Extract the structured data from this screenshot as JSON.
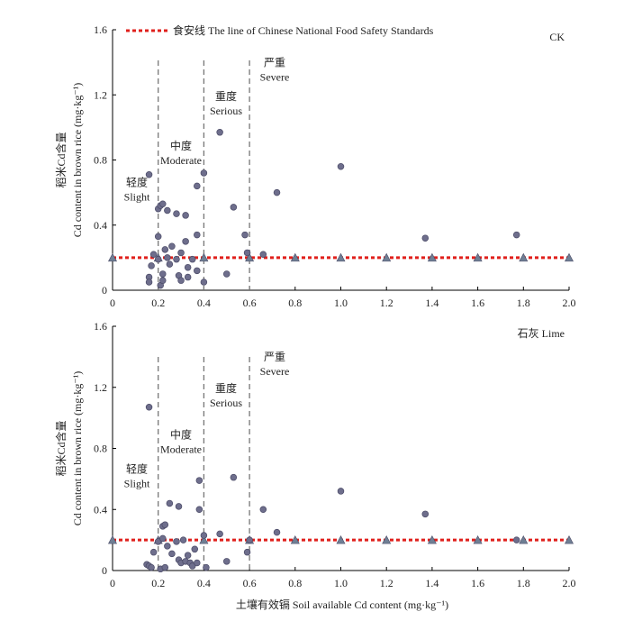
{
  "colors": {
    "point": "#6e6e8c",
    "point_edge": "#4a4a66",
    "standard_line": "#e0201c",
    "triangle": "#6f7f94",
    "divider": "#777777",
    "axis": "#000000"
  },
  "legend": {
    "standard_label": "食安线 The line of Chinese National Food Safety Standards"
  },
  "x_axis_label": "土壤有效镉 Soil available Cd content (mg·kg⁻¹)",
  "chart_data": [
    {
      "type": "scatter",
      "panel_label": "CK",
      "ylabel_cn": "稻米Cd含量",
      "ylabel_en": "Cd content in brown rice (mg·kg⁻¹)",
      "xlim": [
        0,
        2.0
      ],
      "ylim": [
        0,
        1.6
      ],
      "x_ticks": [
        "0",
        "0.2",
        "0.4",
        "0.6",
        "0.8",
        "1.0",
        "1.2",
        "1.4",
        "1.6",
        "1.8",
        "2.0"
      ],
      "y_ticks": [
        "0",
        "0.4",
        "0.8",
        "1.2",
        "1.6"
      ],
      "standard_line_y": 0.2,
      "triangle_markers_x": [
        0,
        0.2,
        0.4,
        0.6,
        0.8,
        1.0,
        1.2,
        1.4,
        1.6,
        1.8,
        2.0
      ],
      "dividers_x": [
        0.2,
        0.4,
        0.6
      ],
      "zones": [
        {
          "cn": "轻度",
          "en": "Slight"
        },
        {
          "cn": "中度",
          "en": "Moderate"
        },
        {
          "cn": "重度",
          "en": "Serious"
        },
        {
          "cn": "严重",
          "en": "Severe"
        }
      ],
      "points": [
        {
          "x": 0.16,
          "y": 0.71
        },
        {
          "x": 0.16,
          "y": 0.08
        },
        {
          "x": 0.16,
          "y": 0.05
        },
        {
          "x": 0.17,
          "y": 0.15
        },
        {
          "x": 0.18,
          "y": 0.22
        },
        {
          "x": 0.2,
          "y": 0.5
        },
        {
          "x": 0.2,
          "y": 0.33
        },
        {
          "x": 0.2,
          "y": 0.19
        },
        {
          "x": 0.21,
          "y": 0.52
        },
        {
          "x": 0.21,
          "y": 0.03
        },
        {
          "x": 0.22,
          "y": 0.53
        },
        {
          "x": 0.22,
          "y": 0.1
        },
        {
          "x": 0.22,
          "y": 0.06
        },
        {
          "x": 0.23,
          "y": 0.25
        },
        {
          "x": 0.24,
          "y": 0.49
        },
        {
          "x": 0.24,
          "y": 0.2
        },
        {
          "x": 0.25,
          "y": 0.16
        },
        {
          "x": 0.26,
          "y": 0.27
        },
        {
          "x": 0.28,
          "y": 0.47
        },
        {
          "x": 0.28,
          "y": 0.19
        },
        {
          "x": 0.29,
          "y": 0.09
        },
        {
          "x": 0.3,
          "y": 0.23
        },
        {
          "x": 0.3,
          "y": 0.06
        },
        {
          "x": 0.32,
          "y": 0.46
        },
        {
          "x": 0.32,
          "y": 0.3
        },
        {
          "x": 0.33,
          "y": 0.14
        },
        {
          "x": 0.33,
          "y": 0.08
        },
        {
          "x": 0.35,
          "y": 0.19
        },
        {
          "x": 0.37,
          "y": 0.64
        },
        {
          "x": 0.37,
          "y": 0.34
        },
        {
          "x": 0.37,
          "y": 0.12
        },
        {
          "x": 0.4,
          "y": 0.72
        },
        {
          "x": 0.4,
          "y": 0.05
        },
        {
          "x": 0.47,
          "y": 0.97
        },
        {
          "x": 0.5,
          "y": 0.1
        },
        {
          "x": 0.53,
          "y": 0.51
        },
        {
          "x": 0.58,
          "y": 0.34
        },
        {
          "x": 0.59,
          "y": 0.23
        },
        {
          "x": 0.66,
          "y": 0.22
        },
        {
          "x": 0.72,
          "y": 0.6
        },
        {
          "x": 1.0,
          "y": 0.76
        },
        {
          "x": 1.37,
          "y": 0.32
        },
        {
          "x": 1.77,
          "y": 0.34
        }
      ]
    },
    {
      "type": "scatter",
      "panel_label": "石灰 Lime",
      "ylabel_cn": "稻米Cd含量",
      "ylabel_en": "Cd content in brown rice (mg·kg⁻¹)",
      "xlim": [
        0,
        2.0
      ],
      "ylim": [
        0,
        1.6
      ],
      "x_ticks": [
        "0",
        "0.2",
        "0.4",
        "0.6",
        "0.8",
        "1.0",
        "1.2",
        "1.4",
        "1.6",
        "1.8",
        "2.0"
      ],
      "y_ticks": [
        "0",
        "0.4",
        "0.8",
        "1.2",
        "1.6"
      ],
      "standard_line_y": 0.2,
      "triangle_markers_x": [
        0,
        0.2,
        0.4,
        0.6,
        0.8,
        1.0,
        1.2,
        1.4,
        1.6,
        1.8,
        2.0
      ],
      "dividers_x": [
        0.2,
        0.4,
        0.6
      ],
      "zones": [
        {
          "cn": "轻度",
          "en": "Slight"
        },
        {
          "cn": "中度",
          "en": "Moderate"
        },
        {
          "cn": "重度",
          "en": "Serious"
        },
        {
          "cn": "严重",
          "en": "Severe"
        }
      ],
      "points": [
        {
          "x": 0.16,
          "y": 1.07
        },
        {
          "x": 0.15,
          "y": 0.04
        },
        {
          "x": 0.16,
          "y": 0.03
        },
        {
          "x": 0.17,
          "y": 0.02
        },
        {
          "x": 0.18,
          "y": 0.12
        },
        {
          "x": 0.2,
          "y": 0.19
        },
        {
          "x": 0.21,
          "y": 0.01
        },
        {
          "x": 0.22,
          "y": 0.29
        },
        {
          "x": 0.22,
          "y": 0.21
        },
        {
          "x": 0.23,
          "y": 0.3
        },
        {
          "x": 0.23,
          "y": 0.02
        },
        {
          "x": 0.24,
          "y": 0.16
        },
        {
          "x": 0.25,
          "y": 0.44
        },
        {
          "x": 0.26,
          "y": 0.11
        },
        {
          "x": 0.28,
          "y": 0.19
        },
        {
          "x": 0.29,
          "y": 0.42
        },
        {
          "x": 0.29,
          "y": 0.07
        },
        {
          "x": 0.3,
          "y": 0.05
        },
        {
          "x": 0.31,
          "y": 0.2
        },
        {
          "x": 0.32,
          "y": 0.06
        },
        {
          "x": 0.33,
          "y": 0.1
        },
        {
          "x": 0.34,
          "y": 0.05
        },
        {
          "x": 0.35,
          "y": 0.03
        },
        {
          "x": 0.36,
          "y": 0.14
        },
        {
          "x": 0.37,
          "y": 0.05
        },
        {
          "x": 0.38,
          "y": 0.59
        },
        {
          "x": 0.38,
          "y": 0.4
        },
        {
          "x": 0.4,
          "y": 0.23
        },
        {
          "x": 0.41,
          "y": 0.02
        },
        {
          "x": 0.47,
          "y": 0.24
        },
        {
          "x": 0.5,
          "y": 0.06
        },
        {
          "x": 0.53,
          "y": 0.61
        },
        {
          "x": 0.59,
          "y": 0.12
        },
        {
          "x": 0.6,
          "y": 0.2
        },
        {
          "x": 0.66,
          "y": 0.4
        },
        {
          "x": 0.72,
          "y": 0.25
        },
        {
          "x": 1.0,
          "y": 0.52
        },
        {
          "x": 1.37,
          "y": 0.37
        },
        {
          "x": 1.77,
          "y": 0.2
        }
      ]
    }
  ]
}
